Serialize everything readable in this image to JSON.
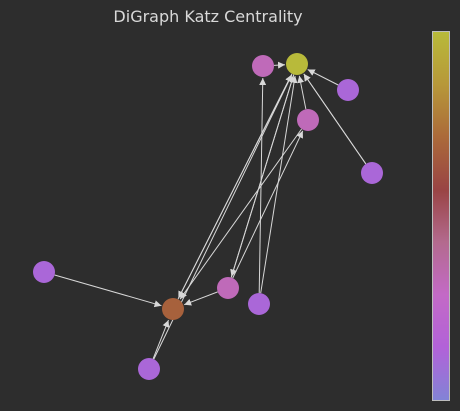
{
  "chart_data": {
    "type": "network-graph",
    "title": "DiGraph Katz Centrality",
    "metric": "katz_centrality",
    "directed": true,
    "nodes": [
      {
        "id": 0,
        "centrality": 1.0
      },
      {
        "id": 1,
        "centrality": 0.68
      },
      {
        "id": 2,
        "centrality": 0.32
      },
      {
        "id": 3,
        "centrality": 0.32
      },
      {
        "id": 4,
        "centrality": 0.32
      },
      {
        "id": 5,
        "centrality": 0.12
      },
      {
        "id": 6,
        "centrality": 0.12
      },
      {
        "id": 7,
        "centrality": 0.12
      },
      {
        "id": 8,
        "centrality": 0.12
      },
      {
        "id": 9,
        "centrality": 0.12
      }
    ],
    "edges": [
      [
        2,
        1
      ],
      [
        6,
        1
      ],
      [
        5,
        1
      ],
      [
        3,
        1
      ],
      [
        0,
        1
      ],
      [
        0,
        3
      ],
      [
        1,
        0
      ],
      [
        4,
        0
      ],
      [
        9,
        0
      ],
      [
        2,
        0
      ],
      [
        7,
        0
      ],
      [
        3,
        0
      ],
      [
        8,
        0
      ],
      [
        6,
        0
      ],
      [
        7,
        4
      ],
      [
        3,
        2
      ],
      [
        8,
        0
      ]
    ],
    "colorscale": {
      "stops": [
        "#8283d6",
        "#b262d8",
        "#c36ac6",
        "#b36a8e",
        "#994444",
        "#ab6a3a",
        "#b7983a",
        "#b8ba3a"
      ],
      "min_label": "",
      "max_label": ""
    },
    "edge_color": "#d8d8d8",
    "background": "#2d2d2d"
  }
}
